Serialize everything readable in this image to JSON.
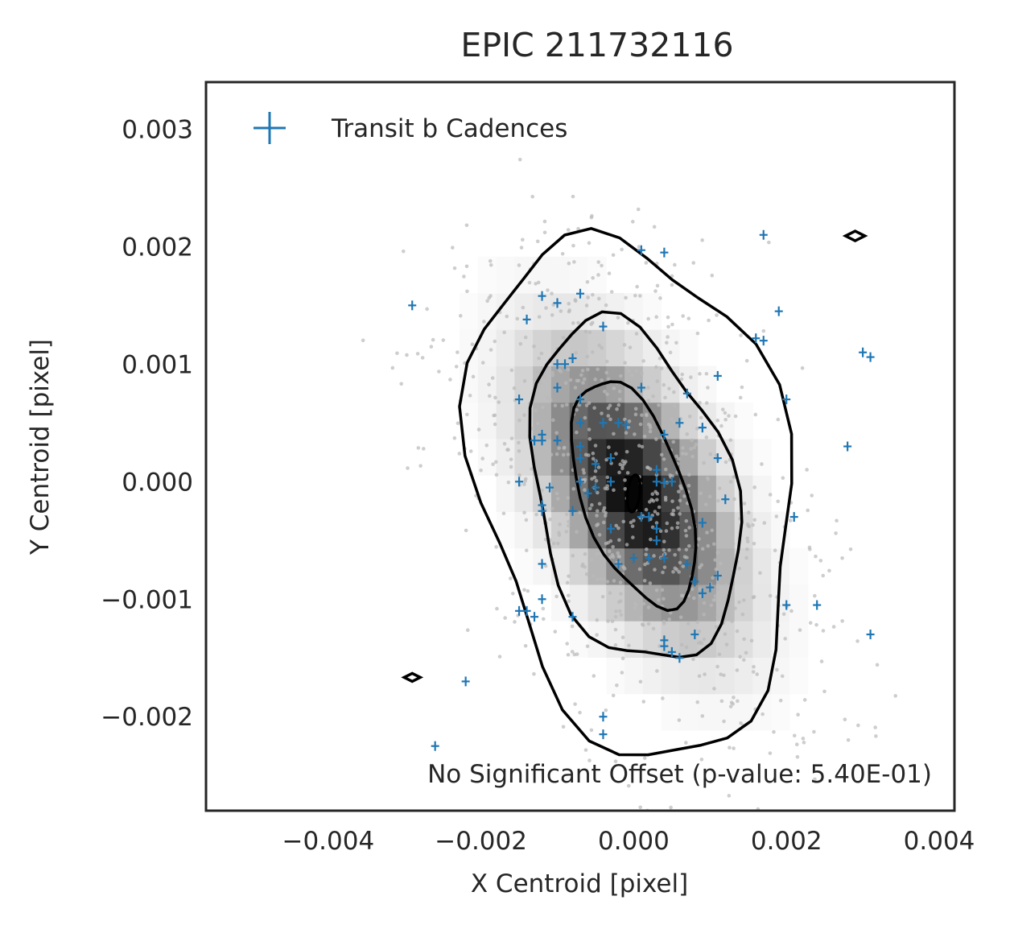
{
  "chart_data": {
    "type": "scatter",
    "title": "EPIC 211732116",
    "xlabel": "X Centroid [pixel]",
    "ylabel": "Y Centroid [pixel]",
    "xlim": [
      -0.0056,
      0.0042
    ],
    "ylim": [
      -0.0028,
      0.0034
    ],
    "x_ticks": [
      -0.004,
      -0.002,
      0.0,
      0.002,
      0.004
    ],
    "x_tick_labels": [
      "−0.004",
      "−0.002",
      "0.000",
      "0.002",
      "0.004"
    ],
    "y_ticks": [
      0.003,
      0.002,
      0.001,
      0.0,
      -0.001,
      -0.002
    ],
    "y_tick_labels": [
      "0.003",
      "0.002",
      "0.001",
      "0.000",
      "−0.001",
      "−0.002"
    ],
    "grid": false,
    "legend": {
      "position": "top-left",
      "entries": [
        "Transit b Cadences"
      ]
    },
    "annotation": "No Significant Offset (p-value: 5.40E-01)",
    "series": [
      {
        "name": "Transit b Cadences",
        "marker": "+",
        "color": "#1f77b4",
        "points": [
          [
            -0.0029,
            0.0015
          ],
          [
            -0.0014,
            0.00138
          ],
          [
            -0.0012,
            0.00158
          ],
          [
            -0.001,
            0.00152
          ],
          [
            -0.0007,
            0.0016
          ],
          [
            -0.0004,
            0.00132
          ],
          [
            0.0001,
            0.00197
          ],
          [
            0.0004,
            0.00195
          ],
          [
            0.0017,
            0.0021
          ],
          [
            0.0019,
            0.00145
          ],
          [
            0.0016,
            0.00122
          ],
          [
            0.0017,
            0.0012
          ],
          [
            0.002,
            0.0007
          ],
          [
            0.003,
            0.0011
          ],
          [
            0.0031,
            0.00106
          ],
          [
            0.0028,
            0.0003
          ],
          [
            0.0011,
            0.0009
          ],
          [
            0.0001,
            0.0008
          ],
          [
            0.0007,
            0.00075
          ],
          [
            -0.0008,
            0.00105
          ],
          [
            -0.0009,
            0.001
          ],
          [
            -0.001,
            0.001
          ],
          [
            -0.001,
            0.0008
          ],
          [
            -0.0015,
            0.0007
          ],
          [
            -0.0007,
            0.0007
          ],
          [
            -0.0007,
            0.0005
          ],
          [
            -0.0004,
            0.0005
          ],
          [
            -0.0002,
            0.0005
          ],
          [
            -0.0001,
            0.00048
          ],
          [
            0.0006,
            0.0005
          ],
          [
            0.0009,
            0.00046
          ],
          [
            0.0004,
            0.0004
          ],
          [
            -0.0012,
            0.0004
          ],
          [
            -0.0012,
            0.00035
          ],
          [
            -0.0013,
            0.00035
          ],
          [
            -0.0007,
            0.0003
          ],
          [
            -0.0007,
            0.0002
          ],
          [
            -0.0005,
            0.00015
          ],
          [
            -0.0003,
            0.0002
          ],
          [
            -0.001,
            0.00035
          ],
          [
            0.0011,
            0.0002
          ],
          [
            -0.0015,
            0.0
          ],
          [
            -0.0011,
            -5e-05
          ],
          [
            -0.0012,
            -0.0002
          ],
          [
            -0.0012,
            -0.00025
          ],
          [
            -0.0007,
            0.0
          ],
          [
            -0.0006,
            -0.0001
          ],
          [
            -0.0005,
            -5e-05
          ],
          [
            -0.0003,
            0.0
          ],
          [
            0.0003,
            0.0001
          ],
          [
            0.0003,
            0.0
          ],
          [
            0.0004,
            -1e-05
          ],
          [
            0.0005,
            0.0
          ],
          [
            0.0012,
            -0.00015
          ],
          [
            -0.0008,
            -0.00025
          ],
          [
            -0.0003,
            -0.0004
          ],
          [
            0.0001,
            -0.0003
          ],
          [
            0.0002,
            -0.0003
          ],
          [
            0.0003,
            -0.0004
          ],
          [
            0.0003,
            -0.0005
          ],
          [
            0.0009,
            -0.00035
          ],
          [
            0.0021,
            -0.0003
          ],
          [
            -0.0012,
            -0.0007
          ],
          [
            -0.0002,
            -0.0007
          ],
          [
            0.0,
            -0.00065
          ],
          [
            0.0002,
            -0.00065
          ],
          [
            0.0004,
            -0.00065
          ],
          [
            0.0007,
            -0.0007
          ],
          [
            0.0008,
            -0.00085
          ],
          [
            0.0009,
            -0.00095
          ],
          [
            0.001,
            -0.0009
          ],
          [
            0.0011,
            -0.0008
          ],
          [
            -0.0012,
            -0.001
          ],
          [
            -0.0015,
            -0.0011
          ],
          [
            -0.0014,
            -0.0011
          ],
          [
            -0.0013,
            -0.00115
          ],
          [
            -0.0008,
            -0.00115
          ],
          [
            0.002,
            -0.00105
          ],
          [
            0.0024,
            -0.00105
          ],
          [
            0.0031,
            -0.0013
          ],
          [
            0.0004,
            -0.0014
          ],
          [
            0.0005,
            -0.00145
          ],
          [
            0.0004,
            -0.00135
          ],
          [
            0.0006,
            -0.0015
          ],
          [
            0.0008,
            -0.0013
          ],
          [
            -0.0022,
            -0.0017
          ],
          [
            -0.0026,
            -0.00225
          ],
          [
            -0.0004,
            -0.002
          ],
          [
            -0.0004,
            -0.00215
          ]
        ]
      }
    ],
    "density_overlay": {
      "type": "2d-histogram-with-contours",
      "cmap": "greys",
      "contour_color": "#000000"
    }
  }
}
